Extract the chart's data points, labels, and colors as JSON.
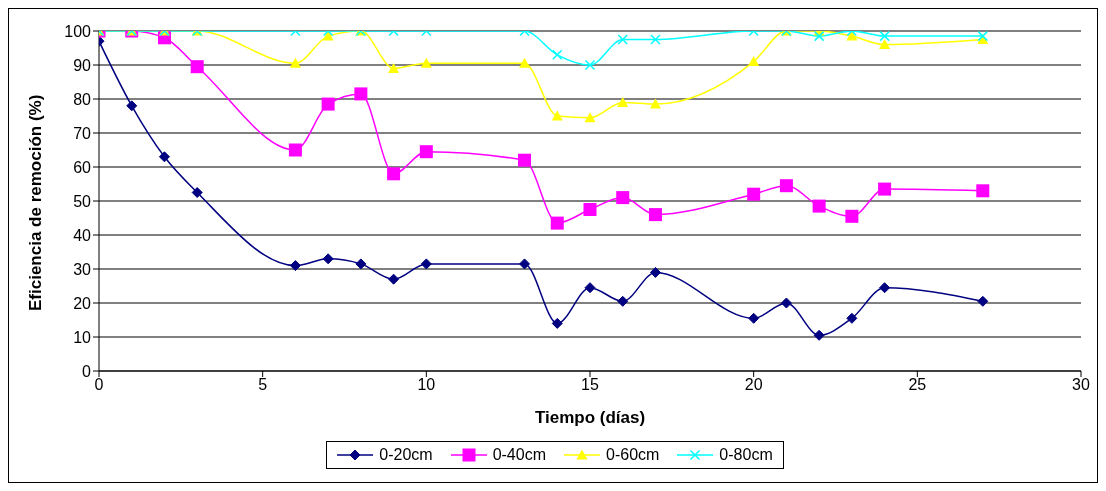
{
  "chart_data": {
    "type": "line",
    "xlabel": "Tiempo (días)",
    "ylabel": "Eficiencia de remoción (%)",
    "x": [
      0,
      1,
      2,
      3,
      6,
      7,
      8,
      9,
      10,
      13,
      14,
      15,
      16,
      17,
      20,
      21,
      22,
      23,
      24,
      27
    ],
    "series": [
      {
        "name": "0-20cm",
        "color": "#000080",
        "marker": "diamond",
        "values": [
          97,
          78,
          63,
          52.5,
          31,
          33,
          31.5,
          27,
          31.5,
          31.5,
          14,
          24.5,
          20.5,
          29,
          15.5,
          20,
          10.5,
          15.5,
          24.5,
          20.5
        ]
      },
      {
        "name": "0-40cm",
        "color": "#ff00ff",
        "marker": "square",
        "values": [
          100,
          100,
          98,
          89.5,
          65,
          78.5,
          81.5,
          58,
          64.5,
          62,
          43.5,
          47.5,
          51,
          46,
          52,
          54.5,
          48.5,
          45.5,
          53.5,
          53
        ]
      },
      {
        "name": "0-60cm",
        "color": "#ffff00",
        "marker": "triangle",
        "values": [
          100,
          100,
          100,
          100,
          90.5,
          98.5,
          100,
          89,
          90.5,
          90.5,
          75,
          74.5,
          79,
          78.5,
          91,
          100,
          100,
          98.5,
          96,
          97.5
        ]
      },
      {
        "name": "0-80cm",
        "color": "#00ffff",
        "marker": "cross",
        "values": [
          100,
          100,
          100,
          100,
          100,
          100,
          100,
          100,
          100,
          100,
          93,
          90,
          97.5,
          97.5,
          100,
          100,
          98.5,
          100,
          98.5,
          98.5
        ]
      }
    ],
    "xlim": [
      0,
      30
    ],
    "xticks": [
      0,
      5,
      10,
      15,
      20,
      25,
      30
    ],
    "ylim": [
      0,
      100
    ],
    "yticks": [
      0,
      10,
      20,
      30,
      40,
      50,
      60,
      70,
      80,
      90,
      100
    ],
    "grid": "y",
    "legend": "bottom"
  }
}
